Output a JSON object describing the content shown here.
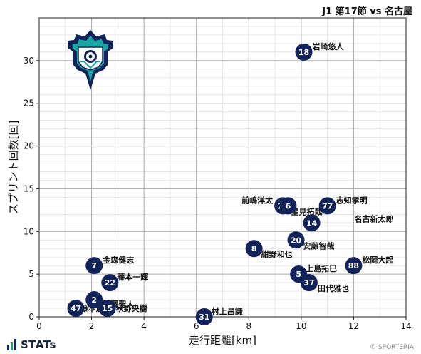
{
  "header": {
    "title": "J1 第17節 vs 名古屋"
  },
  "footer": {
    "brand": "STATs",
    "credit": "© SPORTERIA"
  },
  "colors": {
    "marker": "#12235a",
    "marker_text": "#ffffff",
    "grid_major": "#aaaaaa",
    "grid_minor": "#dddddd",
    "brand_accent": "#1aa37a",
    "emblem_teal": "#1ba6a6",
    "emblem_navy": "#12235a"
  },
  "emblem": {
    "icon": "club-crest-icon"
  },
  "chart_data": {
    "type": "scatter",
    "xlabel": "走行距離[km]",
    "ylabel": "スプリント回数[回]",
    "xlim": [
      0,
      14
    ],
    "ylim": [
      0,
      35
    ],
    "xticks": [
      0,
      2,
      4,
      6,
      8,
      10,
      12,
      14
    ],
    "yticks": [
      0,
      5,
      10,
      15,
      20,
      25,
      30
    ],
    "grid": true,
    "points": [
      {
        "number": "18",
        "name": "岩崎悠人",
        "x": 10.1,
        "y": 31
      },
      {
        "number": "29",
        "name": "前嶋洋太",
        "x": 9.3,
        "y": 13
      },
      {
        "number": "6",
        "name": "星見拓哉",
        "x": 9.5,
        "y": 13
      },
      {
        "number": "77",
        "name": "志知孝明",
        "x": 11.0,
        "y": 13
      },
      {
        "number": "14",
        "name": "名古新太郎",
        "x": 10.4,
        "y": 11
      },
      {
        "number": "20",
        "name": "安藤智哉",
        "x": 9.8,
        "y": 9
      },
      {
        "number": "8",
        "name": "紺野和也",
        "x": 8.2,
        "y": 8
      },
      {
        "number": "88",
        "name": "松岡大起",
        "x": 12.0,
        "y": 6
      },
      {
        "number": "5",
        "name": "上島拓巳",
        "x": 9.9,
        "y": 5
      },
      {
        "number": "37",
        "name": "田代雅也",
        "x": 10.3,
        "y": 4
      },
      {
        "number": "7",
        "name": "金森健志",
        "x": 2.1,
        "y": 6
      },
      {
        "number": "22",
        "name": "藤本一輝",
        "x": 2.7,
        "y": 4
      },
      {
        "number": "2",
        "name": "湯澤聖人",
        "x": 2.1,
        "y": 2
      },
      {
        "number": "47",
        "name": "藤本憲明",
        "x": 1.4,
        "y": 1
      },
      {
        "number": "15",
        "name": "秋野央樹",
        "x": 2.6,
        "y": 1
      },
      {
        "number": "31",
        "name": "村上昌謙",
        "x": 6.3,
        "y": 0
      }
    ]
  }
}
